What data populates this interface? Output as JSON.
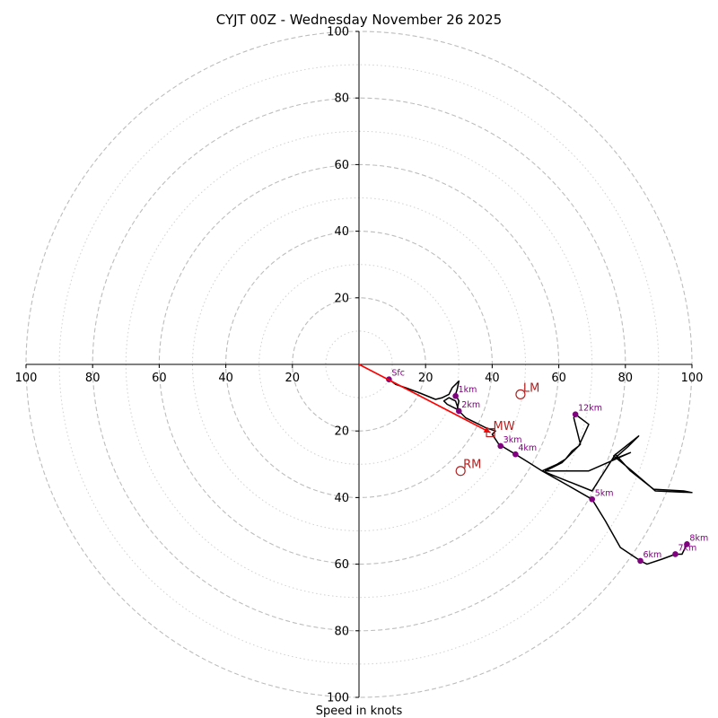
{
  "chart_data": {
    "type": "hodograph",
    "title": "CYJT 00Z - Wednesday November 26 2025",
    "xlabel": "Speed in knots",
    "range": [
      -100,
      100
    ],
    "major_rings": [
      20,
      40,
      60,
      80,
      100
    ],
    "minor_rings": [
      10,
      30,
      50,
      70,
      90
    ],
    "x_ticks": [
      {
        "value": -100,
        "label": "100"
      },
      {
        "value": -80,
        "label": "80"
      },
      {
        "value": -60,
        "label": "60"
      },
      {
        "value": -40,
        "label": "40"
      },
      {
        "value": -20,
        "label": "20"
      },
      {
        "value": 20,
        "label": "20"
      },
      {
        "value": 40,
        "label": "40"
      },
      {
        "value": 60,
        "label": "60"
      },
      {
        "value": 80,
        "label": "80"
      },
      {
        "value": 100,
        "label": "100"
      }
    ],
    "y_ticks": [
      {
        "value": 100,
        "label": "100"
      },
      {
        "value": 80,
        "label": "80"
      },
      {
        "value": 60,
        "label": "60"
      },
      {
        "value": 40,
        "label": "40"
      },
      {
        "value": 20,
        "label": "20"
      },
      {
        "value": -20,
        "label": "20"
      },
      {
        "value": -40,
        "label": "40"
      },
      {
        "value": -60,
        "label": "60"
      },
      {
        "value": -80,
        "label": "80"
      },
      {
        "value": -100,
        "label": "100"
      }
    ],
    "wind_trace": [
      [
        9,
        -4.5
      ],
      [
        11,
        -6
      ],
      [
        14,
        -7
      ],
      [
        18,
        -8.5
      ],
      [
        23,
        -10.5
      ],
      [
        25,
        -10
      ],
      [
        27,
        -9
      ],
      [
        28,
        -7
      ],
      [
        30,
        -5
      ],
      [
        29.5,
        -7.5
      ],
      [
        29,
        -9
      ],
      [
        30,
        -11
      ],
      [
        29.5,
        -13.5
      ],
      [
        26.5,
        -12
      ],
      [
        25.5,
        -11
      ],
      [
        27,
        -10
      ],
      [
        29,
        -11
      ],
      [
        30,
        -14
      ],
      [
        32,
        -16
      ],
      [
        35,
        -17.5
      ],
      [
        38,
        -19
      ],
      [
        41,
        -20
      ],
      [
        40,
        -21
      ],
      [
        42,
        -24
      ],
      [
        44.5,
        -25.5
      ],
      [
        47,
        -27
      ],
      [
        51,
        -29.5
      ],
      [
        55,
        -32
      ],
      [
        59.5,
        -30
      ],
      [
        62,
        -28.5
      ],
      [
        64,
        -26
      ],
      [
        66,
        -24.5
      ],
      [
        69,
        -18
      ],
      [
        65,
        -15
      ],
      [
        64.5,
        -16
      ],
      [
        66.5,
        -24
      ],
      [
        61,
        -29.5
      ],
      [
        56,
        -32
      ],
      [
        60,
        -32
      ],
      [
        69,
        -32
      ],
      [
        81.5,
        -26.5
      ],
      [
        76.5,
        -28.5
      ],
      [
        81,
        -24.5
      ],
      [
        84,
        -21.5
      ],
      [
        76.5,
        -27.5
      ],
      [
        82,
        -32
      ],
      [
        89,
        -38
      ],
      [
        100,
        -38.5
      ],
      [
        97.5,
        -38
      ],
      [
        88.5,
        -37.5
      ],
      [
        81.5,
        -32
      ],
      [
        77,
        -27
      ],
      [
        70,
        -38
      ],
      [
        55,
        -32
      ],
      [
        63,
        -36.5
      ],
      [
        70,
        -40.5
      ],
      [
        74,
        -47
      ],
      [
        78.5,
        -55
      ],
      [
        84.5,
        -59
      ],
      [
        86.5,
        -60
      ],
      [
        91,
        -58.5
      ],
      [
        95,
        -57
      ],
      [
        97,
        -57
      ],
      [
        98,
        -55
      ],
      [
        98.5,
        -54
      ]
    ],
    "height_markers": [
      {
        "label": "Sfc",
        "u": 9,
        "v": -4.5
      },
      {
        "label": "1km",
        "u": 29,
        "v": -9.5
      },
      {
        "label": "2km",
        "u": 30,
        "v": -14
      },
      {
        "label": "3km",
        "u": 42.5,
        "v": -24.5
      },
      {
        "label": "4km",
        "u": 47,
        "v": -27
      },
      {
        "label": "5km",
        "u": 70,
        "v": -40.5
      },
      {
        "label": "6km",
        "u": 84.5,
        "v": -59
      },
      {
        "label": "7km",
        "u": 95,
        "v": -57
      },
      {
        "label": "8km",
        "u": 98.5,
        "v": -54
      },
      {
        "label": "12km",
        "u": 65,
        "v": -15
      }
    ],
    "storm_motion": {
      "bunkers_left": {
        "label": "LM",
        "u": 48.5,
        "v": -9
      },
      "bunkers_right": {
        "label": "RM",
        "u": 30.5,
        "v": -32
      },
      "mean_wind": {
        "label": "MW",
        "u": 39.5,
        "v": -20.5
      }
    },
    "colors": {
      "trace": "#000000",
      "markers": "#800080",
      "motion": "#b22222",
      "arrow": "#ff0000",
      "grid": "#bdbdbd",
      "axis": "#000000"
    }
  }
}
